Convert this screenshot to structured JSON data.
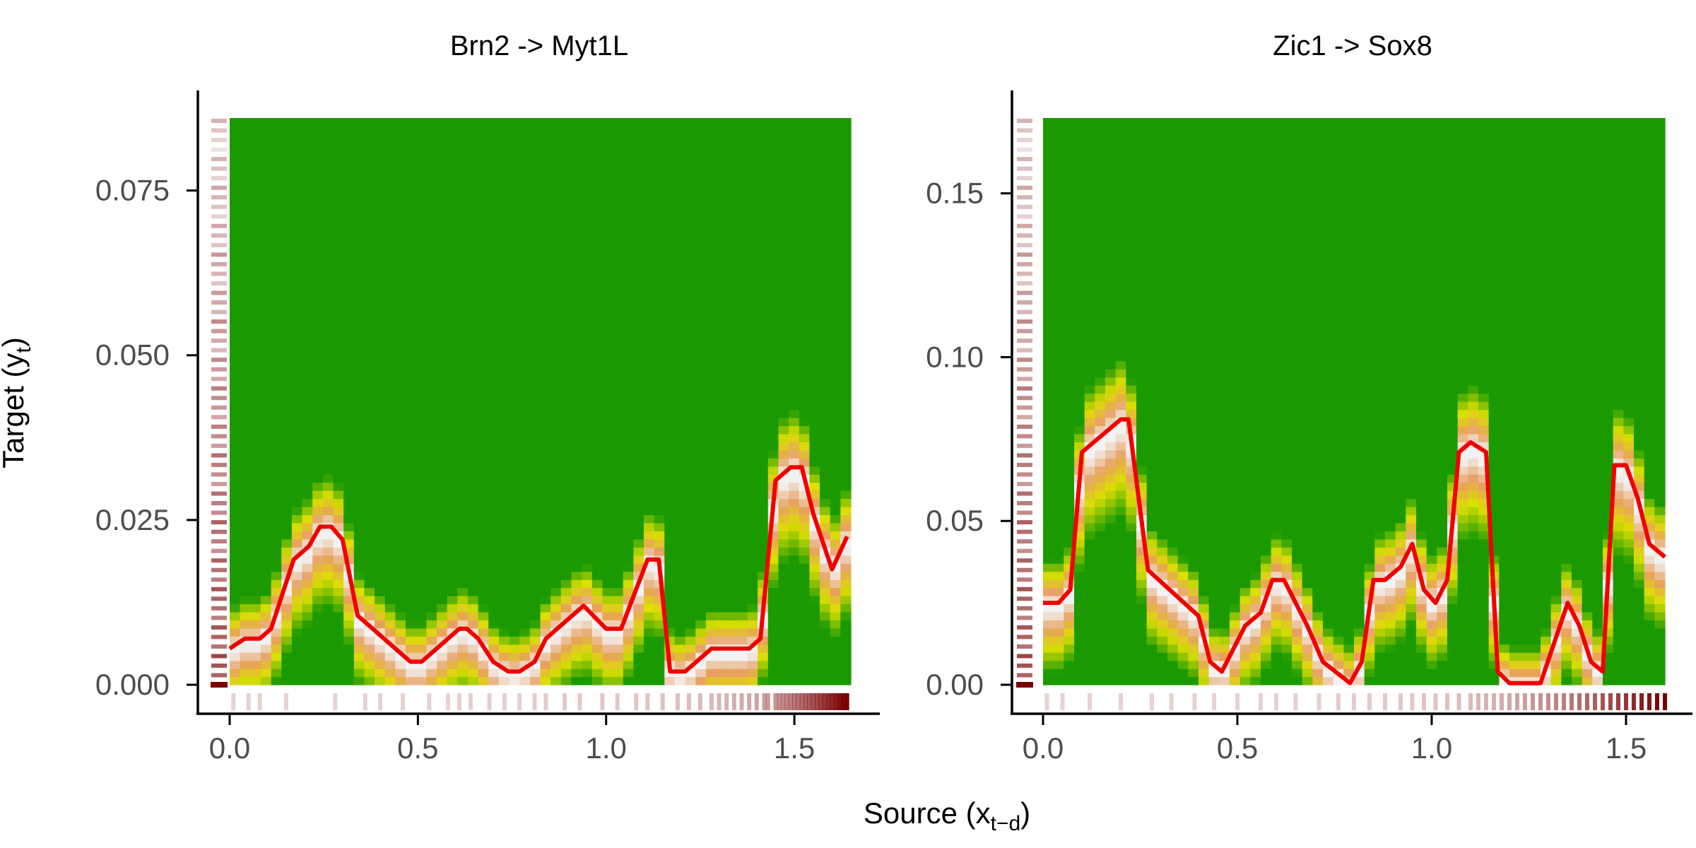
{
  "figure": {
    "xlabel": "Source (x",
    "xlabel_sub": "t−d",
    "xlabel_close": ")",
    "ylabel": "Target (y",
    "ylabel_sub": "t",
    "ylabel_close": ")"
  },
  "colors": {
    "curve": "#f00000",
    "green": "#1a9a00",
    "yellow": "#dde000",
    "orange": "#e8a060",
    "light": "#f2f2f2",
    "rug": "#7a0000",
    "axis": "#000000",
    "tick_label": "#4d4d4d"
  },
  "chart_data": [
    {
      "type": "heatmap",
      "title": "Brn2 -> Myt1L",
      "xlim": [
        0,
        1.65
      ],
      "ylim": [
        0,
        0.086
      ],
      "xticks": [
        0.0,
        0.5,
        1.0,
        1.5
      ],
      "xtick_labels": [
        "0.0",
        "0.5",
        "1.0",
        "1.5"
      ],
      "yticks": [
        0.0,
        0.025,
        0.05,
        0.075
      ],
      "ytick_labels": [
        "0.000",
        "0.025",
        "0.050",
        "0.075"
      ],
      "line": {
        "x": [
          0.0,
          0.04,
          0.08,
          0.11,
          0.17,
          0.21,
          0.24,
          0.27,
          0.3,
          0.34,
          0.41,
          0.48,
          0.51,
          0.55,
          0.61,
          0.63,
          0.66,
          0.7,
          0.74,
          0.77,
          0.81,
          0.84,
          0.94,
          1.0,
          1.04,
          1.11,
          1.14,
          1.17,
          1.21,
          1.28,
          1.38,
          1.41,
          1.45,
          1.49,
          1.52,
          1.55,
          1.6,
          1.64
        ],
        "y": [
          0.0055,
          0.007,
          0.007,
          0.0085,
          0.019,
          0.021,
          0.024,
          0.024,
          0.022,
          0.0105,
          0.007,
          0.0035,
          0.0035,
          0.0055,
          0.0085,
          0.0085,
          0.007,
          0.0035,
          0.002,
          0.002,
          0.0035,
          0.007,
          0.012,
          0.0085,
          0.0085,
          0.019,
          0.019,
          0.002,
          0.002,
          0.0055,
          0.0055,
          0.007,
          0.031,
          0.033,
          0.033,
          0.026,
          0.0175,
          0.0225
        ]
      },
      "x_rug": [
        0.01,
        0.05,
        0.08,
        0.15,
        0.28,
        0.36,
        0.4,
        0.46,
        0.53,
        0.58,
        0.61,
        0.64,
        0.69,
        0.73,
        0.77,
        0.81,
        0.84,
        0.89,
        0.93,
        0.99,
        1.03,
        1.08,
        1.11,
        1.15,
        1.19,
        1.22,
        1.25,
        1.28,
        1.3,
        1.32,
        1.34,
        1.36,
        1.38,
        1.4,
        1.42,
        1.43,
        1.45,
        1.46,
        1.47,
        1.48,
        1.49,
        1.5,
        1.51,
        1.52,
        1.53,
        1.54,
        1.55,
        1.56,
        1.57,
        1.58,
        1.59,
        1.6,
        1.61,
        1.62,
        1.63,
        1.64
      ]
    },
    {
      "type": "heatmap",
      "title": "Zic1 -> Sox8",
      "xlim": [
        0,
        1.6
      ],
      "ylim": [
        0,
        0.173
      ],
      "xticks": [
        0.0,
        0.5,
        1.0,
        1.5
      ],
      "xtick_labels": [
        "0.0",
        "0.5",
        "1.0",
        "1.5"
      ],
      "yticks": [
        0.0,
        0.05,
        0.1,
        0.15
      ],
      "ytick_labels": [
        "0.00",
        "0.05",
        "0.10",
        "0.15"
      ],
      "line": {
        "x": [
          0.0,
          0.04,
          0.07,
          0.1,
          0.2,
          0.22,
          0.27,
          0.4,
          0.43,
          0.46,
          0.52,
          0.56,
          0.59,
          0.62,
          0.68,
          0.72,
          0.79,
          0.82,
          0.85,
          0.88,
          0.92,
          0.95,
          0.98,
          1.01,
          1.04,
          1.07,
          1.1,
          1.14,
          1.17,
          1.2,
          1.28,
          1.31,
          1.35,
          1.38,
          1.41,
          1.44,
          1.47,
          1.5,
          1.53,
          1.56,
          1.6
        ],
        "y": [
          0.025,
          0.025,
          0.029,
          0.071,
          0.081,
          0.081,
          0.035,
          0.021,
          0.007,
          0.004,
          0.018,
          0.022,
          0.032,
          0.032,
          0.018,
          0.007,
          0.0005,
          0.007,
          0.032,
          0.032,
          0.036,
          0.043,
          0.029,
          0.025,
          0.032,
          0.071,
          0.074,
          0.071,
          0.004,
          0.0005,
          0.0005,
          0.011,
          0.025,
          0.018,
          0.007,
          0.004,
          0.067,
          0.067,
          0.057,
          0.043,
          0.039
        ]
      },
      "x_rug": [
        0.01,
        0.05,
        0.12,
        0.2,
        0.28,
        0.33,
        0.39,
        0.44,
        0.5,
        0.56,
        0.6,
        0.65,
        0.71,
        0.76,
        0.8,
        0.84,
        0.88,
        0.92,
        0.95,
        0.98,
        1.01,
        1.04,
        1.07,
        1.1,
        1.12,
        1.14,
        1.16,
        1.18,
        1.2,
        1.22,
        1.24,
        1.26,
        1.28,
        1.3,
        1.32,
        1.34,
        1.36,
        1.38,
        1.4,
        1.42,
        1.44,
        1.46,
        1.48,
        1.5,
        1.52,
        1.54,
        1.56,
        1.58,
        1.6
      ]
    }
  ]
}
